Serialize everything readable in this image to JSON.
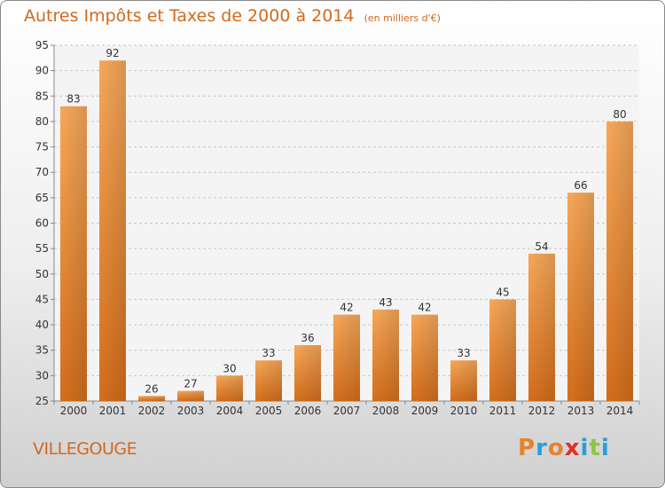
{
  "chart_data": {
    "type": "bar",
    "title": "Autres Impôts et Taxes de 2000 à 2014",
    "subtitle": "(en milliers d'€)",
    "categories": [
      "2000",
      "2001",
      "2002",
      "2003",
      "2004",
      "2005",
      "2006",
      "2007",
      "2008",
      "2009",
      "2010",
      "2011",
      "2012",
      "2013",
      "2014"
    ],
    "values": [
      83,
      92,
      26,
      27,
      30,
      33,
      36,
      42,
      43,
      42,
      33,
      45,
      54,
      66,
      80
    ],
    "ylim": [
      25,
      95
    ],
    "yticks": [
      25,
      30,
      35,
      40,
      45,
      50,
      55,
      60,
      65,
      70,
      75,
      80,
      85,
      90,
      95
    ],
    "grid": "horizontal-dashed",
    "bar_color": "#e8822a"
  },
  "commune": "VILLEGOUGE",
  "logo": {
    "text": "Proxiti",
    "colors": [
      "#e8822a",
      "#2a9fd8",
      "#e8822a",
      "#e0302a",
      "#2a9fd8",
      "#8cc63f",
      "#2a9fd8"
    ]
  }
}
